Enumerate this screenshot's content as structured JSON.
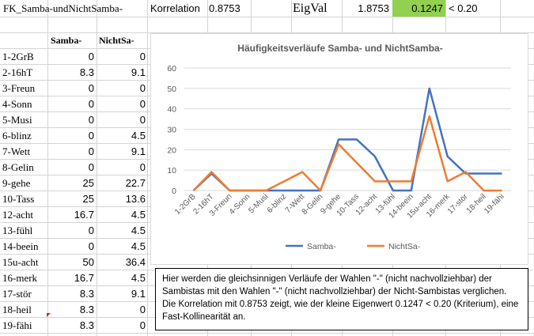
{
  "header": {
    "title": "FK_Samba-undNichtSamba-",
    "korrelation_label": "Korrelation",
    "korrelation_value": "0.8753",
    "eigval_label": "EigVal",
    "eigval_1": "1.8753",
    "eigval_2": "0.1247",
    "criterion": "< 0.20"
  },
  "table": {
    "headers": [
      "Samba-",
      "NichtSa-"
    ],
    "rows": [
      {
        "label": "1-2GrB",
        "samba": "0",
        "nicht": "0"
      },
      {
        "label": "2-16hT",
        "samba": "8.3",
        "nicht": "9.1"
      },
      {
        "label": "3-Freun",
        "samba": "0",
        "nicht": "0"
      },
      {
        "label": "4-Sonn",
        "samba": "0",
        "nicht": "0"
      },
      {
        "label": "5-Musi",
        "samba": "0",
        "nicht": "0"
      },
      {
        "label": "6-blinz",
        "samba": "0",
        "nicht": "4.5"
      },
      {
        "label": "7-Wett",
        "samba": "0",
        "nicht": "9.1"
      },
      {
        "label": "8-Gelin",
        "samba": "0",
        "nicht": "0"
      },
      {
        "label": "9-gehe",
        "samba": "25",
        "nicht": "22.7"
      },
      {
        "label": "10-Tass",
        "samba": "25",
        "nicht": "13.6"
      },
      {
        "label": "12-acht",
        "samba": "16.7",
        "nicht": "4.5"
      },
      {
        "label": "13-fühl",
        "samba": "0",
        "nicht": "4.5"
      },
      {
        "label": "14-beein",
        "samba": "0",
        "nicht": "4.5"
      },
      {
        "label": "15u-acht",
        "samba": "50",
        "nicht": "36.4"
      },
      {
        "label": "16-merk",
        "samba": "16.7",
        "nicht": "4.5"
      },
      {
        "label": "17-stör",
        "samba": "8.3",
        "nicht": "9.1"
      },
      {
        "label": "18-heil",
        "samba": "8.3",
        "nicht": "0"
      },
      {
        "label": "19-fähi",
        "samba": "8.3",
        "nicht": "0"
      }
    ]
  },
  "chart_data": {
    "type": "line",
    "title": "Häufigkeitsverläufe Samba- und NichtSamba-",
    "categories": [
      "1-2GrB",
      "2-16hT",
      "3-Freun",
      "4-Sonn",
      "5-Musi",
      "6-blinz",
      "7-Wett",
      "8-Gelin",
      "9-gehe",
      "10-Tass",
      "12-acht",
      "13-fühl",
      "14-beein",
      "15u-acht",
      "16-merk",
      "17-stör",
      "18-heil",
      "19-fähi"
    ],
    "series": [
      {
        "name": "Samba-",
        "color": "#4472c4",
        "values": [
          0,
          8.3,
          0,
          0,
          0,
          0,
          0,
          0,
          25,
          25,
          16.7,
          0,
          0,
          50,
          16.7,
          8.3,
          8.3,
          8.3
        ]
      },
      {
        "name": "NichtSa-",
        "color": "#ed7d31",
        "values": [
          0,
          9.1,
          0,
          0,
          0,
          4.5,
          9.1,
          0,
          22.7,
          13.6,
          4.5,
          4.5,
          4.5,
          36.4,
          4.5,
          9.1,
          0,
          0
        ]
      }
    ],
    "y_ticks": [
      "0",
      "10",
      "20",
      "30",
      "40",
      "50",
      "60"
    ],
    "ylim": [
      0,
      60
    ],
    "legend": "bottom",
    "grid": true
  },
  "note": {
    "text": "Hier werden die gleichsinnigen Verläufe der Wahlen \"-\"  (nicht nachvollziehbar) der Sambistas mit den Wahlen \"-\" (nicht nachvollziehbar) der Nicht-Sambistas verglichen. Die Korrelation mit 0.8753 zeigt, wie der kleine Eigenwert 0.1247 < 0.20 (Kriterium), eine Fast-Kollinearität an."
  },
  "colors": {
    "green_cell": "#92d050",
    "grid": "#d4d4d4"
  }
}
